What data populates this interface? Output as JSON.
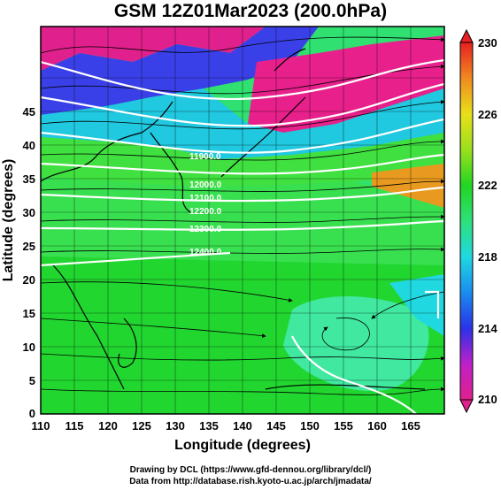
{
  "title": "GSM 12Z01Mar2023 (200.0hPa)",
  "axes": {
    "xlabel": "Longitude (degrees)",
    "ylabel": "Latitude  (degrees)",
    "xticks": [
      "110",
      "115",
      "120",
      "125",
      "130",
      "135",
      "140",
      "145",
      "150",
      "155",
      "160",
      "165"
    ],
    "yticks": [
      "0",
      "5",
      "10",
      "15",
      "20",
      "25",
      "30",
      "35",
      "40",
      "45"
    ],
    "xrange": [
      110,
      170
    ],
    "yrange": [
      0,
      50
    ]
  },
  "colorbar": {
    "ticks": [
      "210",
      "214",
      "218",
      "222",
      "226",
      "230"
    ],
    "range": [
      210,
      230
    ],
    "colors": [
      "#e0208c",
      "#7a1fd6",
      "#2a32e8",
      "#1aa0f0",
      "#20e0d0",
      "#2ee07a",
      "#22d622",
      "#9ae01e",
      "#e8e01a",
      "#f0a020",
      "#f06020",
      "#e82020"
    ]
  },
  "contours": {
    "labels": [
      "11900.0",
      "12000.0",
      "12100.0",
      "12200.0",
      "12300.0",
      "12400.0"
    ]
  },
  "credits": {
    "line1": "Drawing by DCL (https://www.gfd-dennou.org/library/dcl/)",
    "line2": "Data from http://database.rish.kyoto-u.ac.jp/arch/jmadata/"
  }
}
